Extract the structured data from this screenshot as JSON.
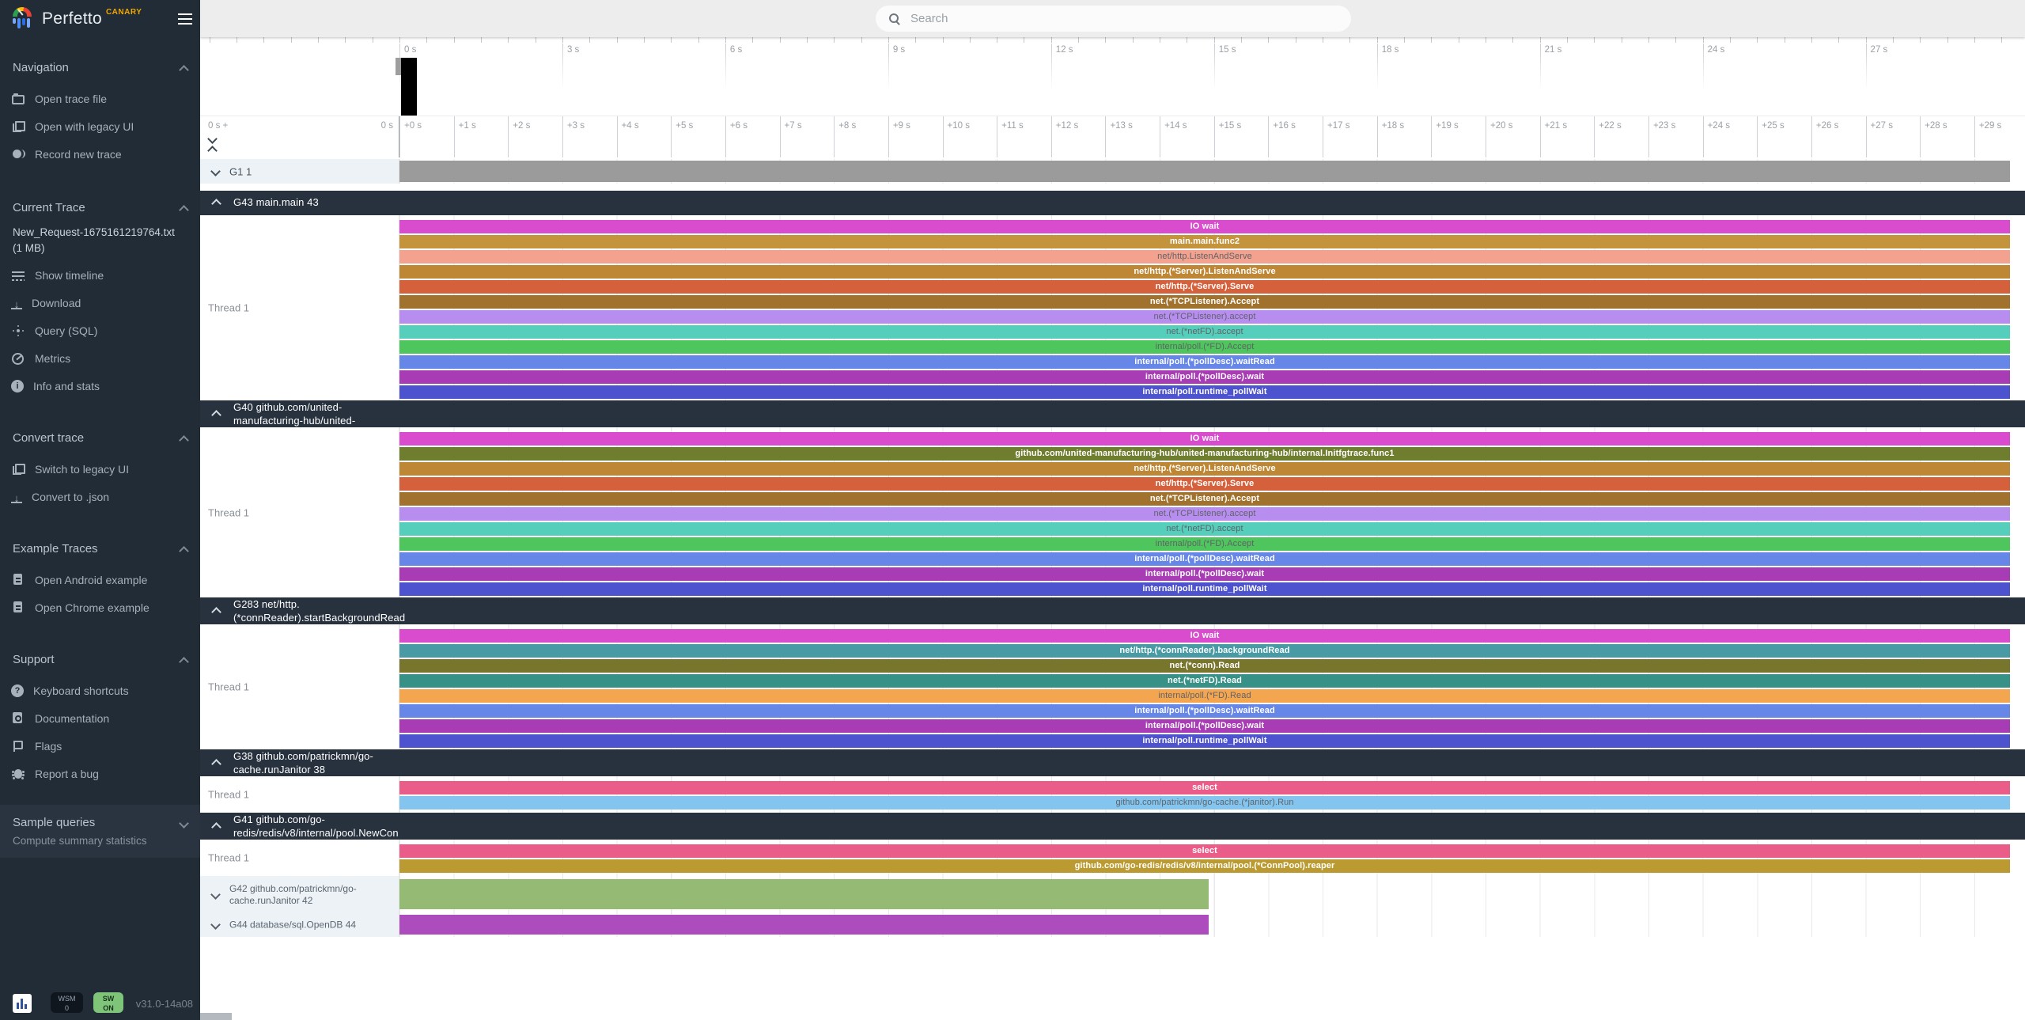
{
  "app": {
    "title": "Perfetto",
    "channel": "CANARY",
    "version": "v31.0-14a08"
  },
  "topbar": {
    "search_placeholder": "Search"
  },
  "sidebar": {
    "sections": [
      {
        "title": "Navigation",
        "chevron": "up",
        "items": [
          {
            "icon": "folder-icon",
            "label": "Open trace file"
          },
          {
            "icon": "legacy-ui-icon",
            "label": "Open with legacy UI"
          },
          {
            "icon": "record-icon",
            "label": "Record new trace"
          }
        ]
      },
      {
        "title": "Current Trace",
        "chevron": "up",
        "trace_name": "New_Request-1675161219764.txt",
        "trace_size": "(1 MB)",
        "items": [
          {
            "icon": "timeline-icon",
            "label": "Show timeline"
          },
          {
            "icon": "download-icon",
            "label": "Download"
          },
          {
            "icon": "query-icon",
            "label": "Query (SQL)"
          },
          {
            "icon": "metrics-icon",
            "label": "Metrics"
          },
          {
            "icon": "info-icon",
            "label": "Info and stats"
          }
        ]
      },
      {
        "title": "Convert trace",
        "chevron": "up",
        "items": [
          {
            "icon": "legacy-ui-icon",
            "label": "Switch to legacy UI"
          },
          {
            "icon": "download-icon",
            "label": "Convert to .json"
          }
        ]
      },
      {
        "title": "Example Traces",
        "chevron": "up",
        "items": [
          {
            "icon": "file-icon",
            "label": "Open Android example"
          },
          {
            "icon": "file-icon",
            "label": "Open Chrome example"
          }
        ]
      },
      {
        "title": "Support",
        "chevron": "up",
        "items": [
          {
            "icon": "help-icon",
            "label": "Keyboard shortcuts"
          },
          {
            "icon": "doc-icon",
            "label": "Documentation"
          },
          {
            "icon": "flag-icon",
            "label": "Flags"
          },
          {
            "icon": "bug-icon",
            "label": "Report a bug"
          }
        ]
      },
      {
        "title": "Sample queries",
        "chevron": "down",
        "items": [
          {
            "label": "Compute summary statistics"
          }
        ]
      }
    ],
    "footer": {
      "wsm_top": "WSM",
      "wsm_bottom": "0",
      "sw_top": "SW",
      "sw_bottom": "ON"
    }
  },
  "overview": {
    "labels": [
      "0 s",
      "3 s",
      "6 s",
      "9 s",
      "12 s",
      "15 s",
      "18 s",
      "21 s",
      "24 s",
      "27 s"
    ],
    "seconds_per_label": 3
  },
  "ruler": {
    "origin_label": "0 s +",
    "zero_label": "0 s",
    "marks": [
      "+0 s",
      "+1 s",
      "+2 s",
      "+3 s",
      "+4 s",
      "+5 s",
      "+6 s",
      "+7 s",
      "+8 s",
      "+9 s",
      "+10 s",
      "+11 s",
      "+12 s",
      "+13 s",
      "+14 s",
      "+15 s",
      "+16 s",
      "+17 s",
      "+18 s",
      "+19 s",
      "+20 s",
      "+21 s",
      "+22 s",
      "+23 s",
      "+24 s",
      "+25 s",
      "+26 s",
      "+27 s",
      "+28 s",
      "+29 s"
    ]
  },
  "tracks": [
    {
      "kind": "summary",
      "id": "g1",
      "label": "G1 1",
      "bar_color": "#9b9b9b",
      "duration_s": 29.7
    },
    {
      "kind": "group",
      "id": "g43",
      "title_lines": [
        "G43 main.main 43"
      ],
      "thread": "Thread 1",
      "slices": [
        {
          "label": "IO wait",
          "color": "#d94ccd",
          "text": "light"
        },
        {
          "label": "main.main.func2",
          "color": "#c4943d",
          "text": "light"
        },
        {
          "label": "net/http.ListenAndServe",
          "color": "#f2a28e",
          "text": "dark"
        },
        {
          "label": "net/http.(*Server).ListenAndServe",
          "color": "#bd8736",
          "text": "light"
        },
        {
          "label": "net/http.(*Server).Serve",
          "color": "#d4613c",
          "text": "light"
        },
        {
          "label": "net.(*TCPListener).Accept",
          "color": "#a1722d",
          "text": "light"
        },
        {
          "label": "net.(*TCPListener).accept",
          "color": "#b88df0",
          "text": "dark"
        },
        {
          "label": "net.(*netFD).accept",
          "color": "#55cebb",
          "text": "dark"
        },
        {
          "label": "internal/poll.(*FD).Accept",
          "color": "#4fc55d",
          "text": "dark"
        },
        {
          "label": "internal/poll.(*pollDesc).waitRead",
          "color": "#6787e8",
          "text": "light"
        },
        {
          "label": "internal/poll.(*pollDesc).wait",
          "color": "#a83cb5",
          "text": "light"
        },
        {
          "label": "internal/poll.runtime_pollWait",
          "color": "#4d52ce",
          "text": "light"
        }
      ]
    },
    {
      "kind": "group",
      "id": "g40",
      "title_lines": [
        "G40 github.com/united-",
        "manufacturing-hub/united-"
      ],
      "thread": "Thread 1",
      "slices": [
        {
          "label": "IO wait",
          "color": "#d94ccd",
          "text": "light"
        },
        {
          "label": "github.com/united-manufacturing-hub/united-manufacturing-hub/internal.Initfgtrace.func1",
          "color": "#6e7d2e",
          "text": "light"
        },
        {
          "label": "net/http.(*Server).ListenAndServe",
          "color": "#bd8736",
          "text": "light"
        },
        {
          "label": "net/http.(*Server).Serve",
          "color": "#d4613c",
          "text": "light"
        },
        {
          "label": "net.(*TCPListener).Accept",
          "color": "#a1722d",
          "text": "light"
        },
        {
          "label": "net.(*TCPListener).accept",
          "color": "#b88df0",
          "text": "dark"
        },
        {
          "label": "net.(*netFD).accept",
          "color": "#55cebb",
          "text": "dark"
        },
        {
          "label": "internal/poll.(*FD).Accept",
          "color": "#4fc55d",
          "text": "dark"
        },
        {
          "label": "internal/poll.(*pollDesc).waitRead",
          "color": "#6787e8",
          "text": "light"
        },
        {
          "label": "internal/poll.(*pollDesc).wait",
          "color": "#a83cb5",
          "text": "light"
        },
        {
          "label": "internal/poll.runtime_pollWait",
          "color": "#4d52ce",
          "text": "light"
        }
      ]
    },
    {
      "kind": "group",
      "id": "g283",
      "title_lines": [
        "G283 net/http.",
        "(*connReader).startBackgroundRead"
      ],
      "thread": "Thread 1",
      "slices": [
        {
          "label": "IO wait",
          "color": "#d94ccd",
          "text": "light"
        },
        {
          "label": "net/http.(*connReader).backgroundRead",
          "color": "#489ba4",
          "text": "light"
        },
        {
          "label": "net.(*conn).Read",
          "color": "#78752c",
          "text": "light"
        },
        {
          "label": "net.(*netFD).Read",
          "color": "#389187",
          "text": "light"
        },
        {
          "label": "internal/poll.(*FD).Read",
          "color": "#f3a64f",
          "text": "dark"
        },
        {
          "label": "internal/poll.(*pollDesc).waitRead",
          "color": "#6787e8",
          "text": "light"
        },
        {
          "label": "internal/poll.(*pollDesc).wait",
          "color": "#a83cb5",
          "text": "light"
        },
        {
          "label": "internal/poll.runtime_pollWait",
          "color": "#4d52ce",
          "text": "light"
        }
      ]
    },
    {
      "kind": "group",
      "id": "g38",
      "title_lines": [
        "G38 github.com/patrickmn/go-",
        "cache.runJanitor 38"
      ],
      "thread": "Thread 1",
      "slices": [
        {
          "label": "select",
          "color": "#e95d88",
          "text": "light"
        },
        {
          "label": "github.com/patrickmn/go-cache.(*janitor).Run",
          "color": "#83c5ef",
          "text": "dark"
        }
      ]
    },
    {
      "kind": "group",
      "id": "g41",
      "title_lines": [
        "G41 github.com/go-",
        "redis/redis/v8/internal/pool.NewCon"
      ],
      "thread": "Thread 1",
      "slices": [
        {
          "label": "select",
          "color": "#e95d88",
          "text": "light"
        },
        {
          "label": "github.com/go-redis/redis/v8/internal/pool.(*ConnPool).reaper",
          "color": "#bb9b31",
          "text": "light"
        }
      ]
    },
    {
      "kind": "collapsed",
      "id": "g42",
      "label_lines": [
        "G42 github.com/patrickmn/go-",
        "cache.runJanitor 42"
      ],
      "bar_color": "#95ba74",
      "duration_s": 14.9
    },
    {
      "kind": "collapsed",
      "id": "g44",
      "label_lines": [
        "G44 database/sql.OpenDB 44"
      ],
      "bar_color": "#ad4cbc",
      "duration_s": 14.9
    }
  ]
}
